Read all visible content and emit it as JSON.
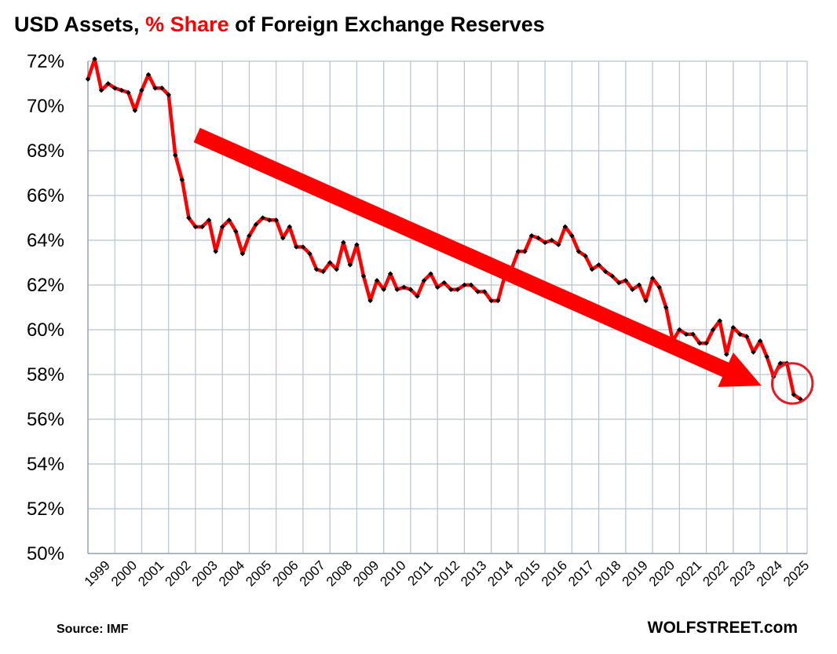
{
  "chart_data": {
    "type": "line",
    "title_parts": [
      {
        "text": "USD Assets, ",
        "color": "#000000"
      },
      {
        "text": "% Share",
        "color": "#ff0000"
      },
      {
        "text": " of Foreign Exchange Reserves",
        "color": "#000000"
      }
    ],
    "xlabel": "",
    "ylabel": "",
    "ylim": [
      50,
      72
    ],
    "yticks": [
      50,
      52,
      54,
      56,
      58,
      60,
      62,
      64,
      66,
      68,
      70,
      72
    ],
    "ytick_suffix": "%",
    "xlim": [
      1999.0,
      2025.75
    ],
    "xtick_labels": [
      "1999",
      "2000",
      "2001",
      "2002",
      "2003",
      "2004",
      "2005",
      "2006",
      "2007",
      "2008",
      "2009",
      "2010",
      "2011",
      "2012",
      "2013",
      "2014",
      "2015",
      "2016",
      "2017",
      "2018",
      "2019",
      "2020",
      "2021",
      "2022",
      "2023",
      "2024",
      "2025"
    ],
    "grid": true,
    "legend": "none",
    "series": [
      {
        "line_color": "#ff0000",
        "marker_color": "#000000",
        "start_year": 1999.0,
        "step_years": 0.25,
        "values": [
          71.2,
          72.1,
          70.7,
          71.0,
          70.8,
          70.7,
          70.6,
          69.8,
          70.7,
          71.4,
          70.8,
          70.8,
          70.5,
          67.8,
          66.7,
          65.0,
          64.6,
          64.6,
          64.9,
          63.5,
          64.6,
          64.9,
          64.4,
          63.4,
          64.2,
          64.7,
          65.0,
          64.9,
          64.9,
          64.1,
          64.6,
          63.7,
          63.7,
          63.4,
          62.7,
          62.6,
          63.0,
          62.7,
          63.9,
          62.9,
          63.8,
          62.4,
          61.3,
          62.2,
          61.8,
          62.5,
          61.8,
          61.9,
          61.8,
          61.5,
          62.2,
          62.5,
          61.9,
          62.1,
          61.8,
          61.8,
          62.0,
          62.0,
          61.7,
          61.7,
          61.3,
          61.3,
          62.4,
          62.7,
          63.5,
          63.5,
          64.2,
          64.1,
          63.9,
          64.0,
          63.8,
          64.6,
          64.2,
          63.5,
          63.3,
          62.7,
          62.9,
          62.6,
          62.4,
          62.1,
          62.2,
          61.8,
          62.0,
          61.3,
          62.3,
          61.9,
          61.0,
          59.5,
          60.0,
          59.8,
          59.8,
          59.4,
          59.4,
          60.0,
          60.4,
          58.9,
          60.1,
          59.8,
          59.7,
          59.0,
          59.5,
          58.8,
          57.9,
          58.5,
          58.5,
          57.1,
          56.9
        ]
      }
    ],
    "annotations": [
      {
        "type": "arrow",
        "color": "#ff0000",
        "from": [
          2003.05,
          68.7
        ],
        "to": [
          2024.05,
          57.5
        ]
      },
      {
        "type": "circle",
        "color": "#e31c24",
        "center": [
          2025.2,
          57.6
        ],
        "radius_years": 0.75
      }
    ]
  },
  "footer": {
    "source": "Source: IMF",
    "brand": "WOLFSTREET.com"
  }
}
